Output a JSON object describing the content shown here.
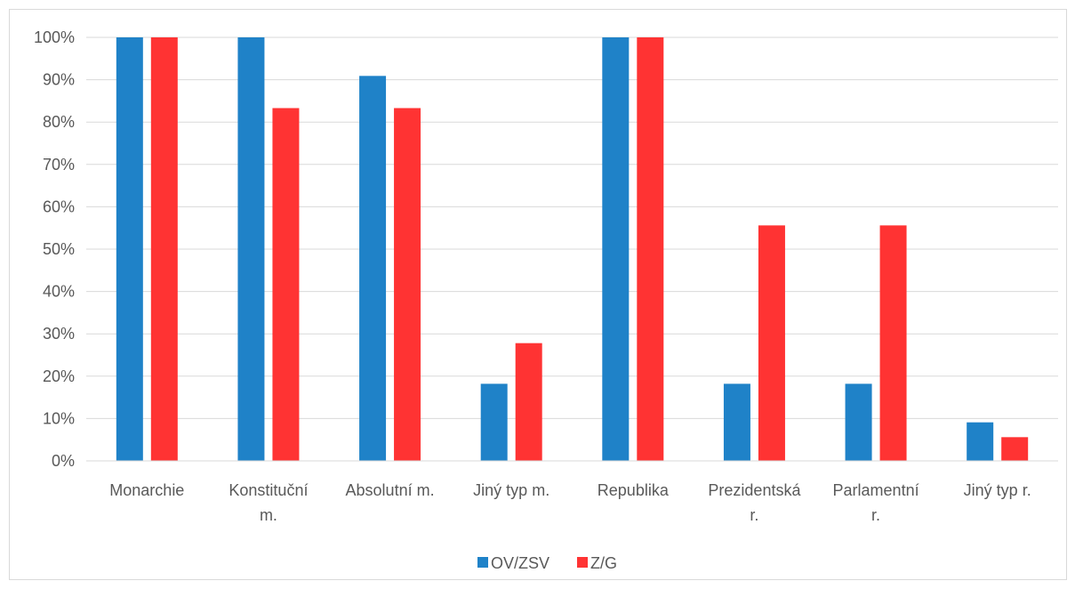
{
  "chart_data": {
    "type": "bar",
    "categories": [
      [
        "Monarchie"
      ],
      [
        "Konstituční",
        "m."
      ],
      [
        "Absolutní m."
      ],
      [
        "Jiný typ m."
      ],
      [
        "Republika"
      ],
      [
        "Prezidentská",
        "r."
      ],
      [
        "Parlamentní",
        "r."
      ],
      [
        "Jiný typ r."
      ]
    ],
    "series": [
      {
        "name": "OV/ZSV",
        "color": "#1f82c8",
        "values": [
          100,
          100,
          90.9,
          18.2,
          100,
          18.2,
          18.2,
          9.1
        ]
      },
      {
        "name": "Z/G",
        "color": "#ff3333",
        "values": [
          100,
          83.3,
          83.3,
          27.8,
          100,
          55.6,
          55.6,
          5.6
        ]
      }
    ],
    "ylim": [
      0,
      100
    ],
    "yticks": [
      "0%",
      "10%",
      "20%",
      "30%",
      "40%",
      "50%",
      "60%",
      "70%",
      "80%",
      "90%",
      "100%"
    ],
    "grid": true,
    "legend_position": "bottom",
    "gridline_color": "#d9d9d9",
    "axis_color": "#d9d9d9",
    "text_color": "#595959"
  }
}
